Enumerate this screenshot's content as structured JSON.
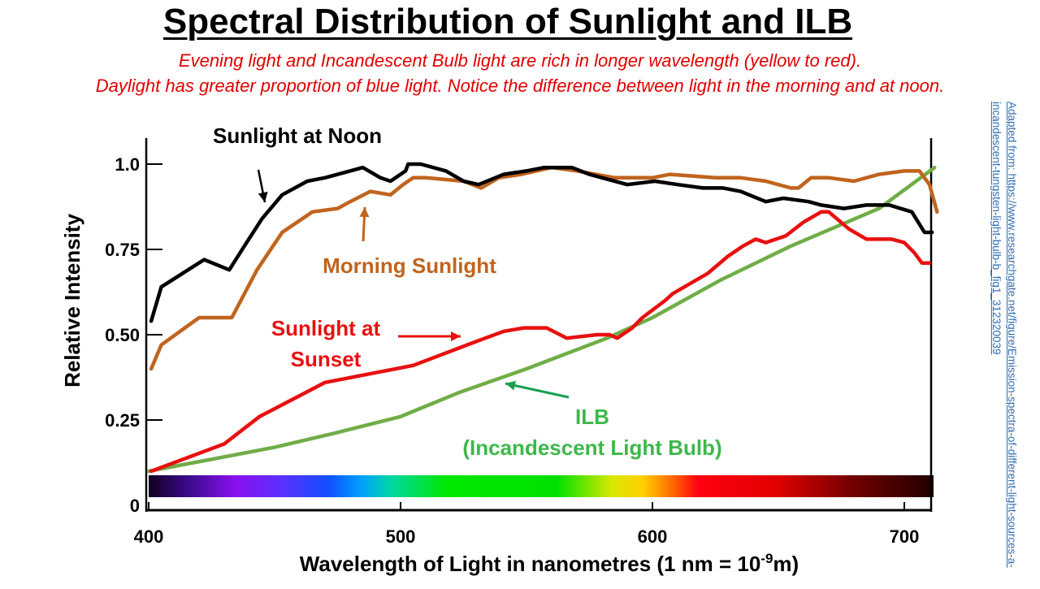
{
  "slide": {
    "title": "Spectral Distribution of Sunlight and ILB",
    "subtitle_lines": [
      "Evening light and Incandescent Bulb light are rich in longer wavelength (yellow to red).",
      "Daylight has greater proportion of blue light. Notice the difference between light in the morning and at noon."
    ],
    "credit": "Adapted from: https://www.researchgate.net/figure/Emission-spectra-of-different-light-sources-a-incandescent-tungsten-light-bulb-b_fig1_312320039"
  },
  "chart_data": {
    "type": "line",
    "ylabel": "Relative Intensity",
    "xlabel": "Wavelength of Light in nanometres (1 nm = 10",
    "xlabel_superscript": "-9",
    "xlabel_suffix": "m)",
    "xlim": [
      400,
      712
    ],
    "ylim": [
      0,
      1.05
    ],
    "xticks": [
      "400",
      "500",
      "600",
      "700"
    ],
    "yticks": [
      "0",
      "0.25",
      "0.50",
      "0.75",
      "1.0"
    ],
    "grid": false,
    "colors": {
      "noon": "#000000",
      "morning": "#c0641e",
      "sunset": "#e81010",
      "ilb": "#70ad47",
      "ilb_label": "#3cb84a",
      "ilb_arrow": "#18a050",
      "sunset_arrow": "#e81010"
    },
    "series": [
      {
        "name": "Sunlight at Noon",
        "label_lines": [
          "Sunlight at Noon"
        ],
        "key": "noon",
        "points": [
          [
            401,
            0.54
          ],
          [
            405,
            0.64
          ],
          [
            422,
            0.72
          ],
          [
            432,
            0.69
          ],
          [
            438,
            0.76
          ],
          [
            445,
            0.84
          ],
          [
            453,
            0.91
          ],
          [
            463,
            0.95
          ],
          [
            470,
            0.96
          ],
          [
            480,
            0.98
          ],
          [
            485,
            0.99
          ],
          [
            492,
            0.96
          ],
          [
            496,
            0.95
          ],
          [
            502,
            0.98
          ],
          [
            503,
            1.0
          ],
          [
            508,
            1.0
          ],
          [
            518,
            0.98
          ],
          [
            525,
            0.95
          ],
          [
            531,
            0.94
          ],
          [
            541,
            0.97
          ],
          [
            550,
            0.98
          ],
          [
            557,
            0.99
          ],
          [
            568,
            0.99
          ],
          [
            575,
            0.97
          ],
          [
            580,
            0.96
          ],
          [
            590,
            0.94
          ],
          [
            601,
            0.95
          ],
          [
            610,
            0.94
          ],
          [
            620,
            0.93
          ],
          [
            628,
            0.93
          ],
          [
            635,
            0.92
          ],
          [
            645,
            0.89
          ],
          [
            652,
            0.9
          ],
          [
            662,
            0.89
          ],
          [
            667,
            0.88
          ],
          [
            676,
            0.87
          ],
          [
            685,
            0.88
          ],
          [
            694,
            0.88
          ],
          [
            703,
            0.86
          ],
          [
            708,
            0.8
          ],
          [
            711,
            0.8
          ]
        ]
      },
      {
        "name": "Morning Sunlight",
        "label_lines": [
          "Morning Sunlight"
        ],
        "key": "morning",
        "points": [
          [
            401,
            0.4
          ],
          [
            405,
            0.47
          ],
          [
            420,
            0.55
          ],
          [
            433,
            0.55
          ],
          [
            443,
            0.69
          ],
          [
            453,
            0.8
          ],
          [
            465,
            0.86
          ],
          [
            475,
            0.87
          ],
          [
            480,
            0.89
          ],
          [
            488,
            0.92
          ],
          [
            496,
            0.91
          ],
          [
            501,
            0.94
          ],
          [
            505,
            0.96
          ],
          [
            510,
            0.96
          ],
          [
            525,
            0.95
          ],
          [
            532,
            0.93
          ],
          [
            539,
            0.96
          ],
          [
            548,
            0.97
          ],
          [
            560,
            0.99
          ],
          [
            570,
            0.98
          ],
          [
            585,
            0.96
          ],
          [
            590,
            0.96
          ],
          [
            600,
            0.96
          ],
          [
            607,
            0.97
          ],
          [
            625,
            0.96
          ],
          [
            635,
            0.96
          ],
          [
            645,
            0.95
          ],
          [
            655,
            0.93
          ],
          [
            658,
            0.93
          ],
          [
            663,
            0.96
          ],
          [
            670,
            0.96
          ],
          [
            680,
            0.95
          ],
          [
            690,
            0.97
          ],
          [
            700,
            0.98
          ],
          [
            706,
            0.98
          ],
          [
            710,
            0.94
          ],
          [
            713,
            0.86
          ]
        ]
      },
      {
        "name": "Sunlight at Sunset",
        "label_lines": [
          "Sunlight at",
          "Sunset"
        ],
        "key": "sunset",
        "points": [
          [
            401,
            0.1
          ],
          [
            430,
            0.18
          ],
          [
            444,
            0.26
          ],
          [
            470,
            0.36
          ],
          [
            505,
            0.41
          ],
          [
            530,
            0.48
          ],
          [
            541,
            0.51
          ],
          [
            549,
            0.52
          ],
          [
            555,
            0.52
          ],
          [
            558,
            0.52
          ],
          [
            566,
            0.49
          ],
          [
            578,
            0.5
          ],
          [
            583,
            0.5
          ],
          [
            586,
            0.49
          ],
          [
            592,
            0.52
          ],
          [
            596,
            0.55
          ],
          [
            605,
            0.6
          ],
          [
            608,
            0.62
          ],
          [
            622,
            0.68
          ],
          [
            630,
            0.73
          ],
          [
            636,
            0.76
          ],
          [
            641,
            0.78
          ],
          [
            645,
            0.77
          ],
          [
            653,
            0.79
          ],
          [
            660,
            0.83
          ],
          [
            667,
            0.86
          ],
          [
            670,
            0.86
          ],
          [
            678,
            0.81
          ],
          [
            685,
            0.78
          ],
          [
            695,
            0.78
          ],
          [
            700,
            0.77
          ],
          [
            704,
            0.74
          ],
          [
            707,
            0.71
          ],
          [
            710,
            0.71
          ]
        ]
      },
      {
        "name": "ILB (Incandescent Light Bulb)",
        "label_lines": [
          "ILB",
          "(Incandescent Light Bulb)"
        ],
        "key": "ilb",
        "points": [
          [
            400,
            0.1
          ],
          [
            450,
            0.17
          ],
          [
            473,
            0.21
          ],
          [
            500,
            0.26
          ],
          [
            523,
            0.33
          ],
          [
            550,
            0.4
          ],
          [
            582,
            0.49
          ],
          [
            600,
            0.55
          ],
          [
            627,
            0.66
          ],
          [
            655,
            0.76
          ],
          [
            690,
            0.87
          ],
          [
            712,
            0.99
          ]
        ]
      }
    ]
  }
}
